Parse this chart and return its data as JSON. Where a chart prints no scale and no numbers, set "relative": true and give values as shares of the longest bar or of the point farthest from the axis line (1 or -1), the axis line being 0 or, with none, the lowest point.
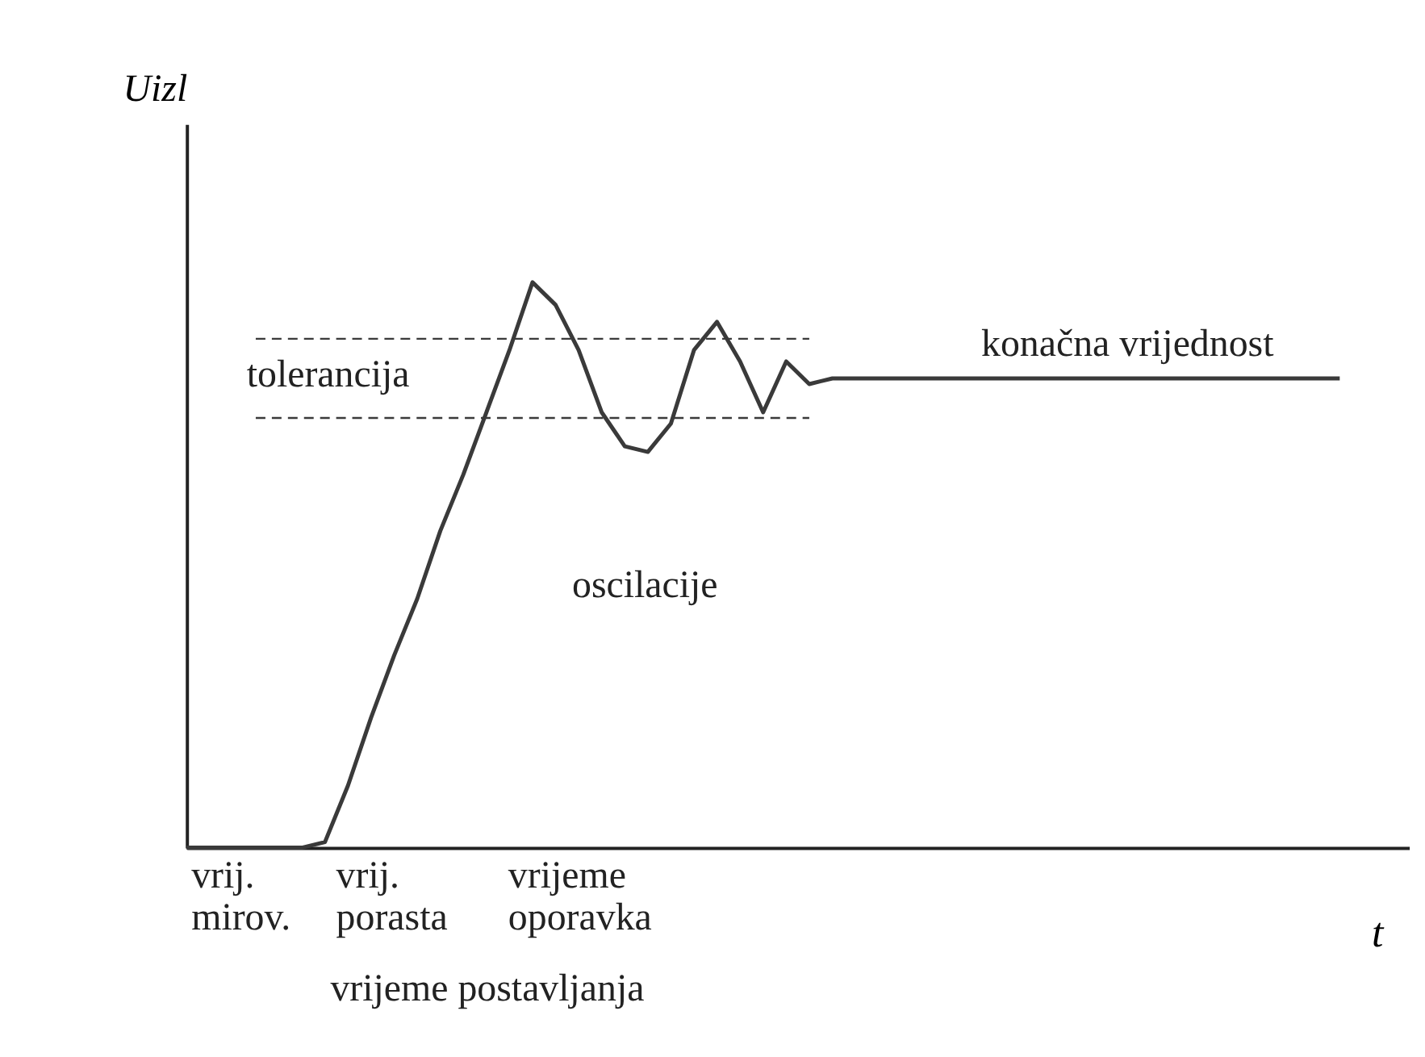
{
  "chart_data": {
    "type": "line",
    "relative": true,
    "xlabel": "t",
    "ylabel": "Uizl",
    "categories": [
      null,
      null,
      null,
      null,
      null,
      null,
      null,
      null,
      null,
      null,
      null,
      null,
      null,
      null,
      null,
      null,
      null,
      null,
      null,
      null,
      null,
      null,
      null,
      null,
      null,
      null,
      null,
      null,
      null,
      null,
      null,
      null,
      null,
      null,
      null,
      null,
      null,
      null,
      null,
      null,
      null,
      null,
      null,
      null,
      null,
      null,
      null,
      null,
      null,
      null,
      null
    ],
    "series": [
      {
        "color": "#3a3a3a",
        "values": [
          0,
          0,
          0,
          0,
          0,
          0,
          0.01,
          0.11,
          0.23,
          0.34,
          0.44,
          0.56,
          0.66,
          0.77,
          0.88,
          1.0,
          0.96,
          0.88,
          0.77,
          0.71,
          0.7,
          0.75,
          0.88,
          0.93,
          0.86,
          0.77,
          0.86,
          0.82,
          0.83,
          0.83,
          0.83,
          0.83,
          0.83,
          0.83,
          0.83,
          0.83,
          0.83,
          0.83,
          0.83,
          0.83,
          0.83,
          0.83,
          0.83,
          0.83,
          0.83,
          0.83,
          0.83,
          0.83,
          0.83,
          0.83,
          0.83
        ]
      }
    ],
    "ref_lines": [
      {
        "axis": "y",
        "value": 0.9,
        "line_style": "dashed",
        "color": "#3a3a3a"
      },
      {
        "axis": "y",
        "value": 0.76,
        "line_style": "dashed",
        "color": "#3a3a3a"
      }
    ],
    "annotations": [
      "tolerancija",
      "oscilacije",
      "konačna vrijednost",
      "vrij. mirov.",
      "vrij. porasta",
      "vrijeme oporavka",
      "vrijeme postavljanja"
    ],
    "line_style": "solid",
    "marker": "none",
    "grid": false
  }
}
